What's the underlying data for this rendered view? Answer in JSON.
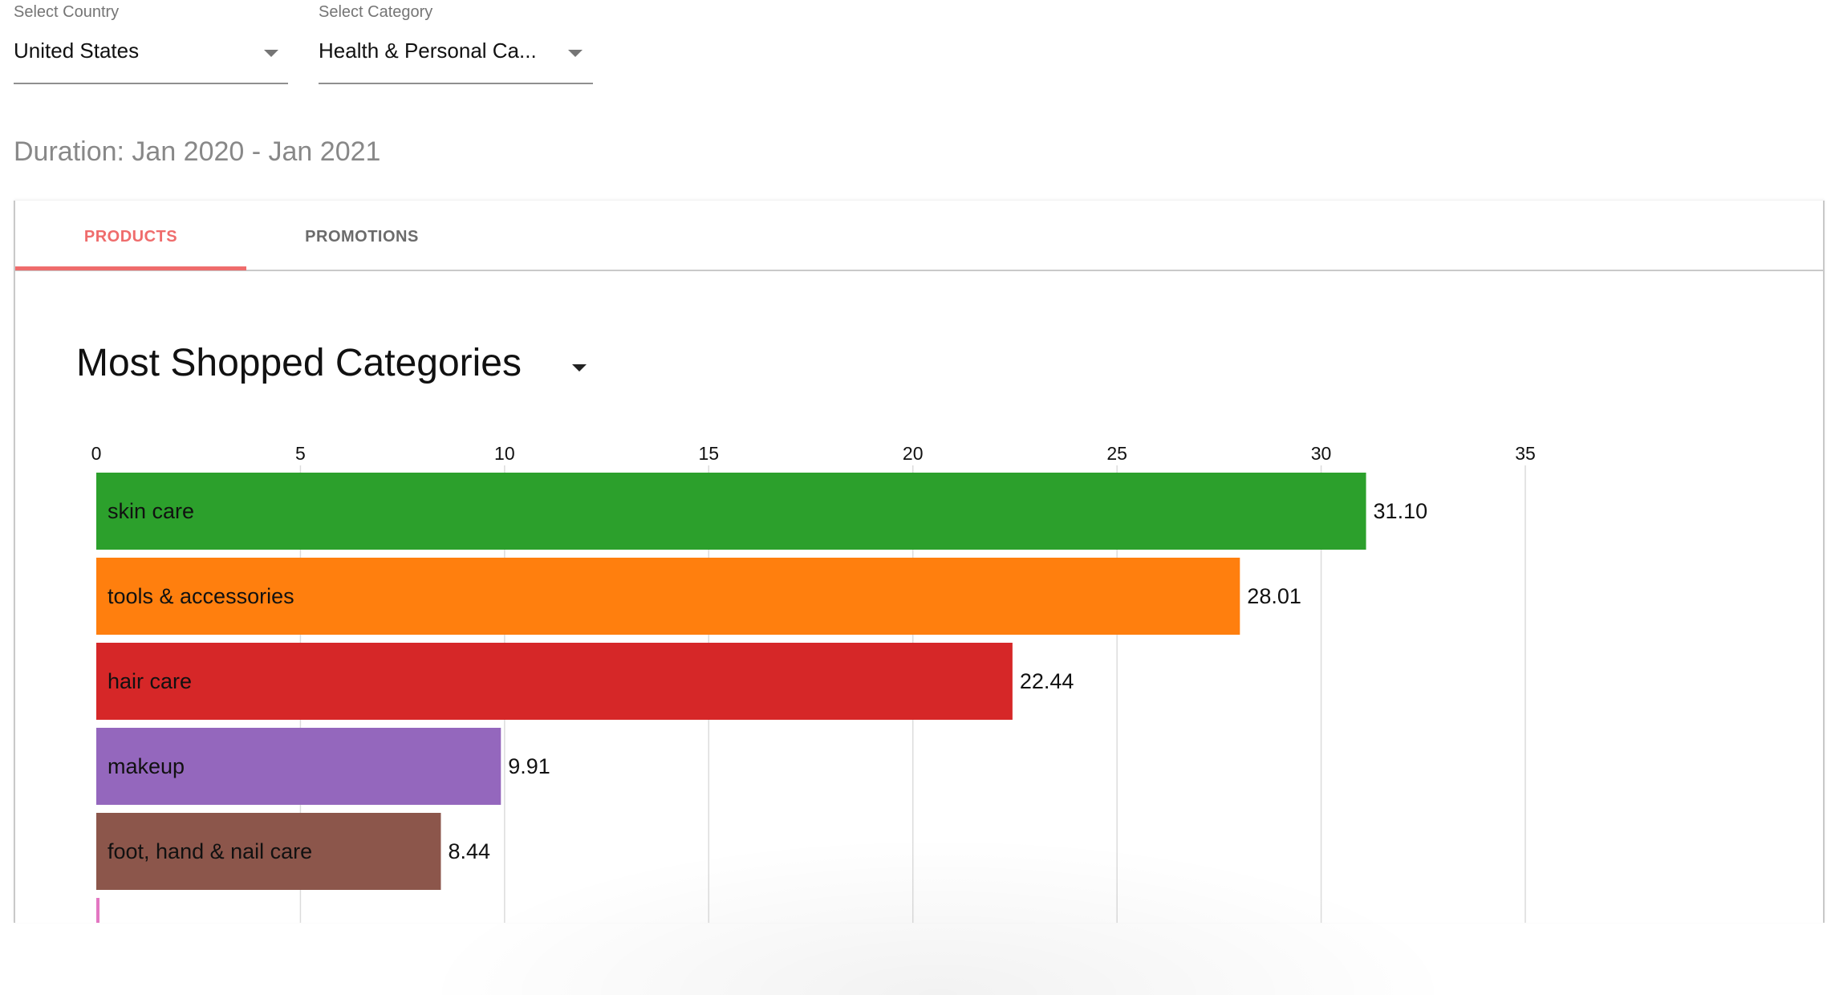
{
  "filters": {
    "country": {
      "label": "Select Country",
      "value": "United States"
    },
    "category": {
      "label": "Select Category",
      "value": "Health & Personal Ca..."
    }
  },
  "duration": "Duration: Jan 2020 - Jan 2021",
  "tabs": [
    {
      "label": "PRODUCTS",
      "active": true
    },
    {
      "label": "PROMOTIONS",
      "active": false
    }
  ],
  "colors": {
    "accent": "#ef6c6c"
  },
  "chart_data": {
    "type": "bar",
    "orientation": "horizontal",
    "title": "Most Shopped Categories",
    "xlim": [
      0,
      35
    ],
    "x_ticks": [
      0,
      5,
      10,
      15,
      20,
      25,
      30,
      35
    ],
    "grid": true,
    "categories": [
      "skin care",
      "tools & accessories",
      "hair care",
      "makeup",
      "foot, hand & nail care"
    ],
    "values": [
      31.1,
      28.01,
      22.44,
      9.91,
      8.44
    ],
    "value_labels": [
      "31.10",
      "28.01",
      "22.44",
      "9.91",
      "8.44"
    ],
    "colors": [
      "#2ca02c",
      "#ff7f0e",
      "#d62728",
      "#9467bd",
      "#8c564b",
      "#e377c2"
    ]
  }
}
